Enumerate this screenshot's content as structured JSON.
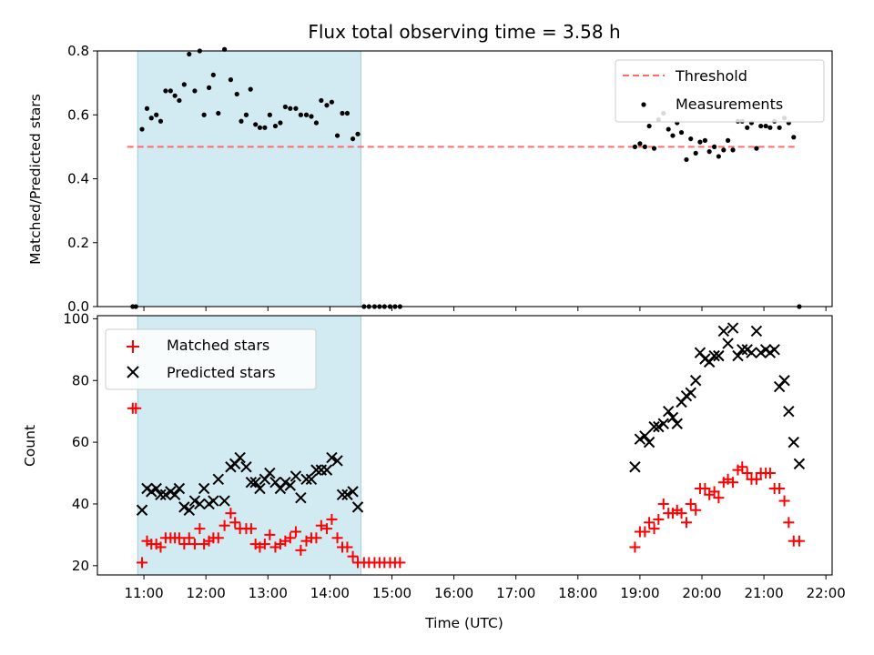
{
  "chart_data": [
    {
      "type": "scatter",
      "title": "Flux total observing time = 3.58 h",
      "ylabel": "Matched/Predicted stars",
      "xlabel": "",
      "xlim": [
        10.25,
        22.1
      ],
      "ylim": [
        0,
        0.8
      ],
      "x_ticks": [
        11,
        12,
        13,
        14,
        15,
        16,
        17,
        18,
        19,
        20,
        21,
        22
      ],
      "y_ticks": [
        0.0,
        0.2,
        0.4,
        0.6,
        0.8
      ],
      "y_tick_labels": [
        "0.0",
        "0.2",
        "0.4",
        "0.6",
        "0.8"
      ],
      "legend_position": "top-right",
      "highlight_band": {
        "x_start": 10.9,
        "x_end": 14.5,
        "color": "#add8e6"
      },
      "threshold": {
        "name": "Threshold",
        "value": 0.5,
        "x_start": 10.73,
        "x_end": 21.55,
        "color": "#ff6b6b"
      },
      "series": [
        {
          "name": "Measurements",
          "color": "#000000",
          "points": [
            [
              10.82,
              0.0
            ],
            [
              10.87,
              0.0
            ],
            [
              10.97,
              0.555
            ],
            [
              11.05,
              0.62
            ],
            [
              11.12,
              0.59
            ],
            [
              11.2,
              0.6
            ],
            [
              11.27,
              0.58
            ],
            [
              11.35,
              0.675
            ],
            [
              11.43,
              0.675
            ],
            [
              11.5,
              0.66
            ],
            [
              11.57,
              0.645
            ],
            [
              11.65,
              0.695
            ],
            [
              11.73,
              0.79
            ],
            [
              11.82,
              0.675
            ],
            [
              11.9,
              0.8
            ],
            [
              11.97,
              0.6
            ],
            [
              12.05,
              0.685
            ],
            [
              12.12,
              0.725
            ],
            [
              12.2,
              0.605
            ],
            [
              12.3,
              0.805
            ],
            [
              12.4,
              0.71
            ],
            [
              12.5,
              0.665
            ],
            [
              12.57,
              0.58
            ],
            [
              12.65,
              0.6
            ],
            [
              12.72,
              0.68
            ],
            [
              12.8,
              0.57
            ],
            [
              12.87,
              0.56
            ],
            [
              12.95,
              0.56
            ],
            [
              13.03,
              0.6
            ],
            [
              13.12,
              0.565
            ],
            [
              13.2,
              0.575
            ],
            [
              13.28,
              0.625
            ],
            [
              13.36,
              0.62
            ],
            [
              13.45,
              0.62
            ],
            [
              13.53,
              0.6
            ],
            [
              13.62,
              0.6
            ],
            [
              13.7,
              0.595
            ],
            [
              13.78,
              0.575
            ],
            [
              13.86,
              0.645
            ],
            [
              13.95,
              0.63
            ],
            [
              14.03,
              0.64
            ],
            [
              14.12,
              0.535
            ],
            [
              14.2,
              0.605
            ],
            [
              14.28,
              0.605
            ],
            [
              14.37,
              0.525
            ],
            [
              14.45,
              0.54
            ],
            [
              14.55,
              0.0
            ],
            [
              14.63,
              0.0
            ],
            [
              14.72,
              0.0
            ],
            [
              14.8,
              0.0
            ],
            [
              14.88,
              0.0
            ],
            [
              14.97,
              0.0
            ],
            [
              15.05,
              0.0
            ],
            [
              15.13,
              0.0
            ],
            [
              18.92,
              0.5
            ],
            [
              19.0,
              0.51
            ],
            [
              19.08,
              0.5
            ],
            [
              19.15,
              0.565
            ],
            [
              19.23,
              0.495
            ],
            [
              19.3,
              0.585
            ],
            [
              19.38,
              0.605
            ],
            [
              19.46,
              0.555
            ],
            [
              19.53,
              0.535
            ],
            [
              19.6,
              0.575
            ],
            [
              19.67,
              0.545
            ],
            [
              19.75,
              0.46
            ],
            [
              19.82,
              0.525
            ],
            [
              19.9,
              0.48
            ],
            [
              19.97,
              0.515
            ],
            [
              20.05,
              0.52
            ],
            [
              20.12,
              0.485
            ],
            [
              20.2,
              0.5
            ],
            [
              20.27,
              0.47
            ],
            [
              20.35,
              0.49
            ],
            [
              20.42,
              0.52
            ],
            [
              20.5,
              0.49
            ],
            [
              20.58,
              0.58
            ],
            [
              20.65,
              0.58
            ],
            [
              20.73,
              0.56
            ],
            [
              20.8,
              0.575
            ],
            [
              20.88,
              0.495
            ],
            [
              20.95,
              0.565
            ],
            [
              21.03,
              0.565
            ],
            [
              21.1,
              0.56
            ],
            [
              21.17,
              0.58
            ],
            [
              21.25,
              0.56
            ],
            [
              21.33,
              0.59
            ],
            [
              21.4,
              0.575
            ],
            [
              21.48,
              0.53
            ],
            [
              21.57,
              0.0
            ]
          ]
        }
      ]
    },
    {
      "type": "scatter",
      "title": "",
      "ylabel": "Count",
      "xlabel": "Time (UTC)",
      "xlim": [
        10.25,
        22.1
      ],
      "ylim": [
        17,
        101
      ],
      "x_ticks": [
        11,
        12,
        13,
        14,
        15,
        16,
        17,
        18,
        19,
        20,
        21,
        22
      ],
      "x_tick_labels": [
        "11:00",
        "12:00",
        "13:00",
        "14:00",
        "15:00",
        "16:00",
        "17:00",
        "18:00",
        "19:00",
        "20:00",
        "21:00",
        "22:00"
      ],
      "y_ticks": [
        20,
        40,
        60,
        80,
        100
      ],
      "y_tick_labels": [
        "20",
        "40",
        "60",
        "80",
        "100"
      ],
      "legend_position": "top-left",
      "highlight_band": {
        "x_start": 10.9,
        "x_end": 14.5,
        "color": "#add8e6"
      },
      "series": [
        {
          "name": "Matched stars",
          "marker": "plus",
          "color": "#ff0000",
          "points": [
            [
              10.82,
              71
            ],
            [
              10.87,
              71
            ],
            [
              10.97,
              21
            ],
            [
              11.05,
              28
            ],
            [
              11.12,
              27
            ],
            [
              11.2,
              27
            ],
            [
              11.27,
              26
            ],
            [
              11.35,
              29
            ],
            [
              11.43,
              29
            ],
            [
              11.5,
              29
            ],
            [
              11.57,
              29
            ],
            [
              11.65,
              27
            ],
            [
              11.73,
              29
            ],
            [
              11.82,
              27
            ],
            [
              11.9,
              32
            ],
            [
              11.97,
              27
            ],
            [
              12.05,
              28
            ],
            [
              12.12,
              29
            ],
            [
              12.2,
              29
            ],
            [
              12.3,
              33
            ],
            [
              12.4,
              37
            ],
            [
              12.47,
              34
            ],
            [
              12.55,
              32
            ],
            [
              12.65,
              32
            ],
            [
              12.73,
              32
            ],
            [
              12.8,
              27
            ],
            [
              12.87,
              26
            ],
            [
              12.95,
              27
            ],
            [
              13.03,
              30
            ],
            [
              13.12,
              26
            ],
            [
              13.2,
              27
            ],
            [
              13.28,
              28
            ],
            [
              13.36,
              29
            ],
            [
              13.45,
              31
            ],
            [
              13.53,
              25
            ],
            [
              13.62,
              28
            ],
            [
              13.7,
              29
            ],
            [
              13.78,
              29
            ],
            [
              13.86,
              33
            ],
            [
              13.95,
              32
            ],
            [
              14.03,
              35
            ],
            [
              14.12,
              29
            ],
            [
              14.2,
              26
            ],
            [
              14.28,
              26
            ],
            [
              14.37,
              23
            ],
            [
              14.45,
              21
            ],
            [
              14.55,
              21
            ],
            [
              14.63,
              21
            ],
            [
              14.72,
              21
            ],
            [
              14.8,
              21
            ],
            [
              14.88,
              21
            ],
            [
              14.97,
              21
            ],
            [
              15.05,
              21
            ],
            [
              15.13,
              21
            ],
            [
              18.92,
              26
            ],
            [
              19.0,
              31
            ],
            [
              19.08,
              31
            ],
            [
              19.15,
              34
            ],
            [
              19.23,
              32
            ],
            [
              19.3,
              35
            ],
            [
              19.38,
              40
            ],
            [
              19.46,
              37
            ],
            [
              19.53,
              37
            ],
            [
              19.6,
              38
            ],
            [
              19.67,
              37
            ],
            [
              19.75,
              34
            ],
            [
              19.82,
              40
            ],
            [
              19.9,
              38
            ],
            [
              19.97,
              45
            ],
            [
              20.05,
              45
            ],
            [
              20.12,
              43
            ],
            [
              20.2,
              44
            ],
            [
              20.27,
              42
            ],
            [
              20.35,
              47
            ],
            [
              20.42,
              48
            ],
            [
              20.5,
              47
            ],
            [
              20.58,
              51
            ],
            [
              20.65,
              52
            ],
            [
              20.73,
              50
            ],
            [
              20.8,
              48
            ],
            [
              20.88,
              48
            ],
            [
              20.95,
              50
            ],
            [
              21.03,
              50
            ],
            [
              21.1,
              50
            ],
            [
              21.17,
              45
            ],
            [
              21.25,
              45
            ],
            [
              21.33,
              41
            ],
            [
              21.4,
              34
            ],
            [
              21.48,
              28
            ],
            [
              21.57,
              28
            ]
          ]
        },
        {
          "name": "Predicted stars",
          "marker": "x",
          "color": "#000000",
          "points": [
            [
              10.97,
              38
            ],
            [
              11.05,
              45
            ],
            [
              11.12,
              44
            ],
            [
              11.2,
              45
            ],
            [
              11.27,
              43
            ],
            [
              11.35,
              43
            ],
            [
              11.43,
              44
            ],
            [
              11.5,
              43
            ],
            [
              11.57,
              45
            ],
            [
              11.65,
              39
            ],
            [
              11.73,
              38
            ],
            [
              11.82,
              41
            ],
            [
              11.9,
              40
            ],
            [
              11.97,
              45
            ],
            [
              12.05,
              40
            ],
            [
              12.12,
              41
            ],
            [
              12.2,
              48
            ],
            [
              12.3,
              41
            ],
            [
              12.4,
              52
            ],
            [
              12.47,
              53
            ],
            [
              12.55,
              55
            ],
            [
              12.65,
              52
            ],
            [
              12.73,
              47
            ],
            [
              12.8,
              47
            ],
            [
              12.87,
              45
            ],
            [
              12.95,
              48
            ],
            [
              13.03,
              50
            ],
            [
              13.12,
              47
            ],
            [
              13.2,
              45
            ],
            [
              13.28,
              47
            ],
            [
              13.36,
              46
            ],
            [
              13.45,
              49
            ],
            [
              13.53,
              42
            ],
            [
              13.62,
              48
            ],
            [
              13.7,
              48
            ],
            [
              13.78,
              51
            ],
            [
              13.86,
              51
            ],
            [
              13.95,
              51
            ],
            [
              14.03,
              55
            ],
            [
              14.12,
              54
            ],
            [
              14.2,
              43
            ],
            [
              14.28,
              43
            ],
            [
              14.37,
              44
            ],
            [
              14.45,
              39
            ],
            [
              18.92,
              52
            ],
            [
              19.0,
              61
            ],
            [
              19.08,
              62
            ],
            [
              19.15,
              60
            ],
            [
              19.23,
              65
            ],
            [
              19.3,
              65
            ],
            [
              19.38,
              66
            ],
            [
              19.46,
              70
            ],
            [
              19.53,
              68
            ],
            [
              19.6,
              66
            ],
            [
              19.67,
              73
            ],
            [
              19.75,
              75
            ],
            [
              19.82,
              76
            ],
            [
              19.9,
              80
            ],
            [
              19.97,
              89
            ],
            [
              20.05,
              87
            ],
            [
              20.12,
              86
            ],
            [
              20.2,
              88
            ],
            [
              20.27,
              88
            ],
            [
              20.35,
              96
            ],
            [
              20.42,
              92
            ],
            [
              20.5,
              97
            ],
            [
              20.58,
              88
            ],
            [
              20.65,
              90
            ],
            [
              20.73,
              90
            ],
            [
              20.8,
              89
            ],
            [
              20.88,
              96
            ],
            [
              20.95,
              89
            ],
            [
              21.03,
              90
            ],
            [
              21.1,
              89
            ],
            [
              21.17,
              90
            ],
            [
              21.25,
              78
            ],
            [
              21.33,
              80
            ],
            [
              21.4,
              70
            ],
            [
              21.48,
              60
            ],
            [
              21.57,
              53
            ]
          ]
        }
      ]
    }
  ]
}
